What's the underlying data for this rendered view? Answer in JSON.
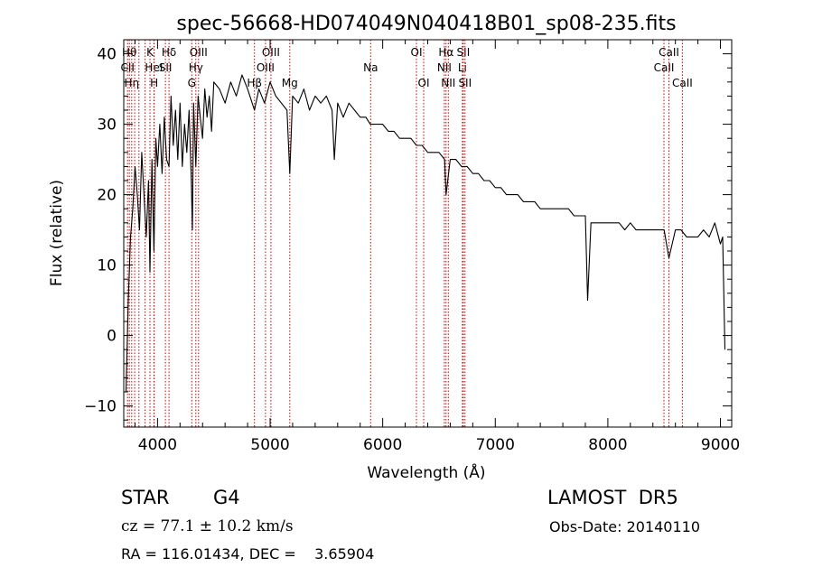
{
  "chart_data": {
    "type": "line",
    "title": "spec-56668-HD074049N040418B01_sp08-235.fits",
    "xlabel": "Wavelength (Å)",
    "ylabel": "Flux (relative)",
    "xlim": [
      3700,
      9100
    ],
    "ylim": [
      -13,
      42
    ],
    "xticks": [
      4000,
      5000,
      6000,
      7000,
      8000,
      9000
    ],
    "yticks": [
      -10,
      0,
      10,
      20,
      30,
      40
    ],
    "grid": false,
    "line_color": "#000000",
    "marker_color": "#cc0000",
    "series": [
      {
        "x": [
          3720,
          3740,
          3760,
          3780,
          3800,
          3820,
          3840,
          3860,
          3880,
          3900,
          3920,
          3933,
          3950,
          3968,
          3985,
          4000,
          4020,
          4040,
          4060,
          4080,
          4102,
          4120,
          4140,
          4160,
          4180,
          4200,
          4220,
          4240,
          4260,
          4280,
          4300,
          4310,
          4320,
          4340,
          4360,
          4380,
          4400,
          4420,
          4440,
          4460,
          4480,
          4500,
          4550,
          4600,
          4650,
          4700,
          4750,
          4800,
          4861,
          4900,
          4950,
          5000,
          5050,
          5100,
          5150,
          5175,
          5200,
          5250,
          5300,
          5350,
          5400,
          5450,
          5500,
          5550,
          5570,
          5600,
          5650,
          5700,
          5750,
          5800,
          5850,
          5890,
          5950,
          6000,
          6050,
          6100,
          6150,
          6200,
          6250,
          6300,
          6350,
          6400,
          6450,
          6500,
          6550,
          6563,
          6600,
          6650,
          6700,
          6750,
          6800,
          6850,
          6900,
          6950,
          7000,
          7050,
          7100,
          7150,
          7200,
          7250,
          7300,
          7350,
          7400,
          7450,
          7500,
          7550,
          7600,
          7650,
          7700,
          7750,
          7800,
          7820,
          7850,
          7900,
          7950,
          8000,
          8050,
          8100,
          8150,
          8200,
          8250,
          8300,
          8350,
          8400,
          8450,
          8500,
          8542,
          8600,
          8650,
          8700,
          8750,
          8800,
          8850,
          8900,
          8950,
          9000,
          9020,
          9040
        ],
        "y": [
          -8,
          5,
          14,
          18,
          24,
          20,
          15,
          26,
          20,
          14,
          22,
          9,
          25,
          12,
          28,
          24,
          30,
          23,
          31,
          25,
          24,
          34,
          27,
          32,
          25,
          33,
          24,
          30,
          26,
          32,
          22,
          15,
          33,
          24,
          34,
          31,
          28,
          35,
          31,
          34,
          29,
          36,
          35,
          33,
          36,
          34,
          37,
          35,
          32,
          35,
          33,
          36,
          34,
          33,
          32,
          23,
          34,
          33,
          35,
          32,
          34,
          33,
          34,
          32,
          25,
          33,
          31,
          33,
          32,
          31,
          31,
          30,
          30,
          30,
          29,
          29,
          28,
          28,
          28,
          27,
          27,
          26,
          26,
          26,
          25,
          20,
          25,
          25,
          24,
          24,
          23,
          23,
          22,
          22,
          21,
          21,
          20,
          20,
          20,
          19,
          19,
          19,
          18,
          18,
          18,
          18,
          18,
          18,
          17,
          17,
          17,
          5,
          16,
          16,
          16,
          16,
          16,
          16,
          15,
          16,
          15,
          15,
          15,
          15,
          15,
          15,
          11,
          15,
          15,
          14,
          14,
          14,
          15,
          14,
          16,
          13,
          14,
          -2
        ]
      }
    ],
    "lines": [
      {
        "wl": 3734,
        "label": "CII",
        "row": 2
      },
      {
        "wl": 3750,
        "label": "Hθ",
        "row": 1
      },
      {
        "wl": 3771,
        "label": "Hη",
        "row": 3
      },
      {
        "wl": 3797,
        "label": "",
        "row": 0
      },
      {
        "wl": 3835,
        "label": "",
        "row": 0
      },
      {
        "wl": 3889,
        "label": "",
        "row": 0
      },
      {
        "wl": 3933,
        "label": "K",
        "row": 1
      },
      {
        "wl": 3968,
        "label": "HeI",
        "row": 2
      },
      {
        "wl": 3970,
        "label": "H",
        "row": 3
      },
      {
        "wl": 4102,
        "label": "Hδ",
        "row": 1
      },
      {
        "wl": 4070,
        "label": "SII",
        "row": 2
      },
      {
        "wl": 4340,
        "label": "Hγ",
        "row": 2
      },
      {
        "wl": 4364,
        "label": "OIII",
        "row": 1
      },
      {
        "wl": 4304,
        "label": "G",
        "row": 3
      },
      {
        "wl": 4861,
        "label": "Hβ",
        "row": 3
      },
      {
        "wl": 4959,
        "label": "OIII",
        "row": 2
      },
      {
        "wl": 5007,
        "label": "OIII",
        "row": 1
      },
      {
        "wl": 5175,
        "label": "Mg",
        "row": 3
      },
      {
        "wl": 5893,
        "label": "Na",
        "row": 2
      },
      {
        "wl": 6300,
        "label": "OI",
        "row": 1
      },
      {
        "wl": 6364,
        "label": "OI",
        "row": 3
      },
      {
        "wl": 6548,
        "label": "NII",
        "row": 2
      },
      {
        "wl": 6563,
        "label": "Hα",
        "row": 1
      },
      {
        "wl": 6583,
        "label": "NII",
        "row": 3
      },
      {
        "wl": 6708,
        "label": "Li",
        "row": 2
      },
      {
        "wl": 6716,
        "label": "SII",
        "row": 1
      },
      {
        "wl": 6731,
        "label": "SII",
        "row": 3
      },
      {
        "wl": 8498,
        "label": "CaII",
        "row": 2
      },
      {
        "wl": 8542,
        "label": "CaII",
        "row": 1
      },
      {
        "wl": 8662,
        "label": "CaII",
        "row": 3
      }
    ]
  },
  "info": {
    "object_class": "STAR",
    "subclass": "G4",
    "survey": "LAMOST  DR5",
    "cz": "cz = 77.1 ± 10.2 km/s",
    "obs_date": "Obs-Date: 20140110",
    "coords": "RA = 116.01434, DEC =    3.65904"
  }
}
